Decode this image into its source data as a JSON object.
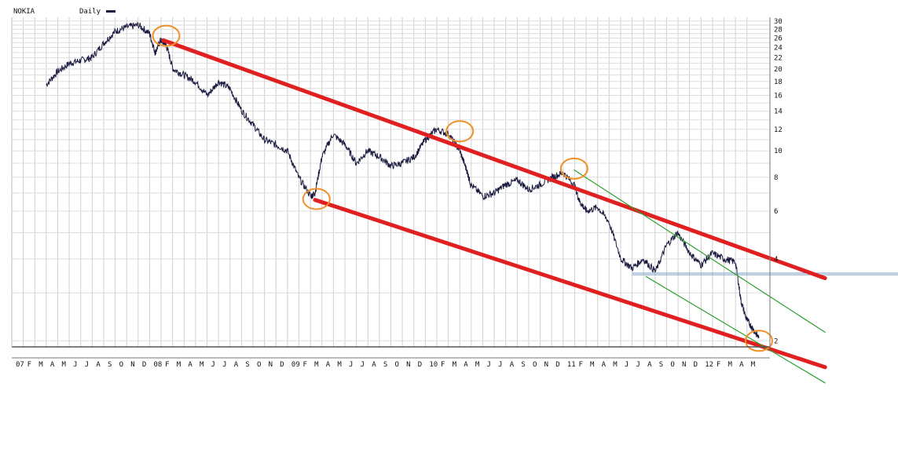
{
  "chart_data": {
    "type": "line",
    "title": "NOKIA",
    "subtitle": "Daily",
    "legend": {
      "series_label": "Daily",
      "swatch_color": "#1a1a40",
      "placement": "top-left"
    },
    "scale": "log",
    "ylim": [
      1.9,
      31
    ],
    "y_ticks": [
      2,
      4,
      6,
      8,
      10,
      12,
      14,
      16,
      18,
      20,
      22,
      24,
      26,
      28,
      30
    ],
    "y_tick_labels": [
      "2",
      "4",
      "6",
      "8",
      "10",
      "12",
      "14",
      "16",
      "18",
      "20",
      "22",
      "24",
      "26",
      "28",
      "30"
    ],
    "xlim": [
      2007.0,
      2012.5
    ],
    "x_tick_labels": [
      "07",
      "F",
      "M",
      "A",
      "M",
      "J",
      "J",
      "A",
      "S",
      "O",
      "N",
      "D",
      "08",
      "F",
      "M",
      "A",
      "M",
      "J",
      "J",
      "A",
      "S",
      "O",
      "N",
      "D",
      "09",
      "F",
      "M",
      "A",
      "M",
      "J",
      "J",
      "A",
      "S",
      "O",
      "N",
      "D",
      "10",
      "F",
      "M",
      "A",
      "M",
      "J",
      "J",
      "A",
      "S",
      "O",
      "N",
      "D",
      "11",
      "F",
      "M",
      "A",
      "M",
      "J",
      "J",
      "A",
      "S",
      "O",
      "N",
      "D",
      "12",
      "F",
      "M",
      "A",
      "M"
    ],
    "grid": true,
    "series": [
      {
        "name": "Daily",
        "color": "#1a1a40",
        "x": [
          2007.25,
          2007.33,
          2007.42,
          2007.5,
          2007.58,
          2007.67,
          2007.75,
          2007.83,
          2007.92,
          2008.0,
          2008.04,
          2008.08,
          2008.12,
          2008.17,
          2008.25,
          2008.33,
          2008.42,
          2008.5,
          2008.58,
          2008.67,
          2008.75,
          2008.83,
          2008.92,
          2009.0,
          2009.08,
          2009.17,
          2009.2,
          2009.25,
          2009.33,
          2009.42,
          2009.5,
          2009.58,
          2009.67,
          2009.75,
          2009.83,
          2009.92,
          2010.0,
          2010.08,
          2010.17,
          2010.25,
          2010.3,
          2010.33,
          2010.42,
          2010.5,
          2010.58,
          2010.67,
          2010.75,
          2010.83,
          2010.92,
          2011.0,
          2011.08,
          2011.12,
          2011.17,
          2011.25,
          2011.33,
          2011.42,
          2011.5,
          2011.58,
          2011.67,
          2011.75,
          2011.83,
          2011.92,
          2012.0,
          2012.08,
          2012.17,
          2012.25,
          2012.29,
          2012.33,
          2012.38,
          2012.42
        ],
        "values": [
          17.5,
          19.5,
          21.0,
          21.5,
          22.0,
          25.0,
          27.5,
          28.5,
          29.0,
          27.0,
          23.0,
          25.5,
          24.5,
          20.0,
          19.0,
          18.0,
          16.0,
          18.0,
          17.0,
          14.0,
          12.5,
          11.0,
          10.5,
          10.0,
          8.0,
          6.8,
          7.0,
          9.5,
          11.5,
          10.5,
          9.0,
          10.0,
          9.5,
          8.8,
          9.0,
          9.5,
          11.0,
          12.0,
          11.5,
          10.0,
          8.5,
          7.5,
          6.8,
          7.0,
          7.5,
          7.8,
          7.2,
          7.5,
          8.0,
          8.3,
          7.5,
          6.5,
          6.0,
          6.2,
          5.5,
          4.0,
          3.7,
          4.0,
          3.6,
          4.5,
          5.0,
          4.2,
          3.8,
          4.2,
          4.0,
          3.9,
          2.8,
          2.4,
          2.2,
          2.05
        ]
      }
    ],
    "overlays": {
      "trend_lines": [
        {
          "color": "#e02020",
          "from": [
            2008.1,
            25.5
          ],
          "to": [
            2012.9,
            3.4
          ]
        },
        {
          "color": "#e02020",
          "from": [
            2009.2,
            6.6
          ],
          "to": [
            2012.9,
            1.6
          ]
        },
        {
          "color": "#2aa02a",
          "from": [
            2011.08,
            8.5
          ],
          "to": [
            2012.9,
            2.15
          ]
        },
        {
          "color": "#2aa02a",
          "from": [
            2011.6,
            3.45
          ],
          "to": [
            2012.9,
            1.4
          ]
        }
      ],
      "horizontal_lines": [
        {
          "color": "#7a9ec8",
          "value": 3.55,
          "from_x": 2011.5
        },
        {
          "color": "#7a9ec8",
          "value": 3.5,
          "from_x": 2011.5
        }
      ],
      "circle_markers": [
        {
          "color": "#f0902a",
          "x": 2008.12,
          "y": 26.5
        },
        {
          "color": "#f0902a",
          "x": 2009.21,
          "y": 6.65
        },
        {
          "color": "#f0902a",
          "x": 2010.25,
          "y": 11.8
        },
        {
          "color": "#f0902a",
          "x": 2011.08,
          "y": 8.6
        },
        {
          "color": "#f0902a",
          "x": 2012.42,
          "y": 2.0
        }
      ]
    }
  }
}
